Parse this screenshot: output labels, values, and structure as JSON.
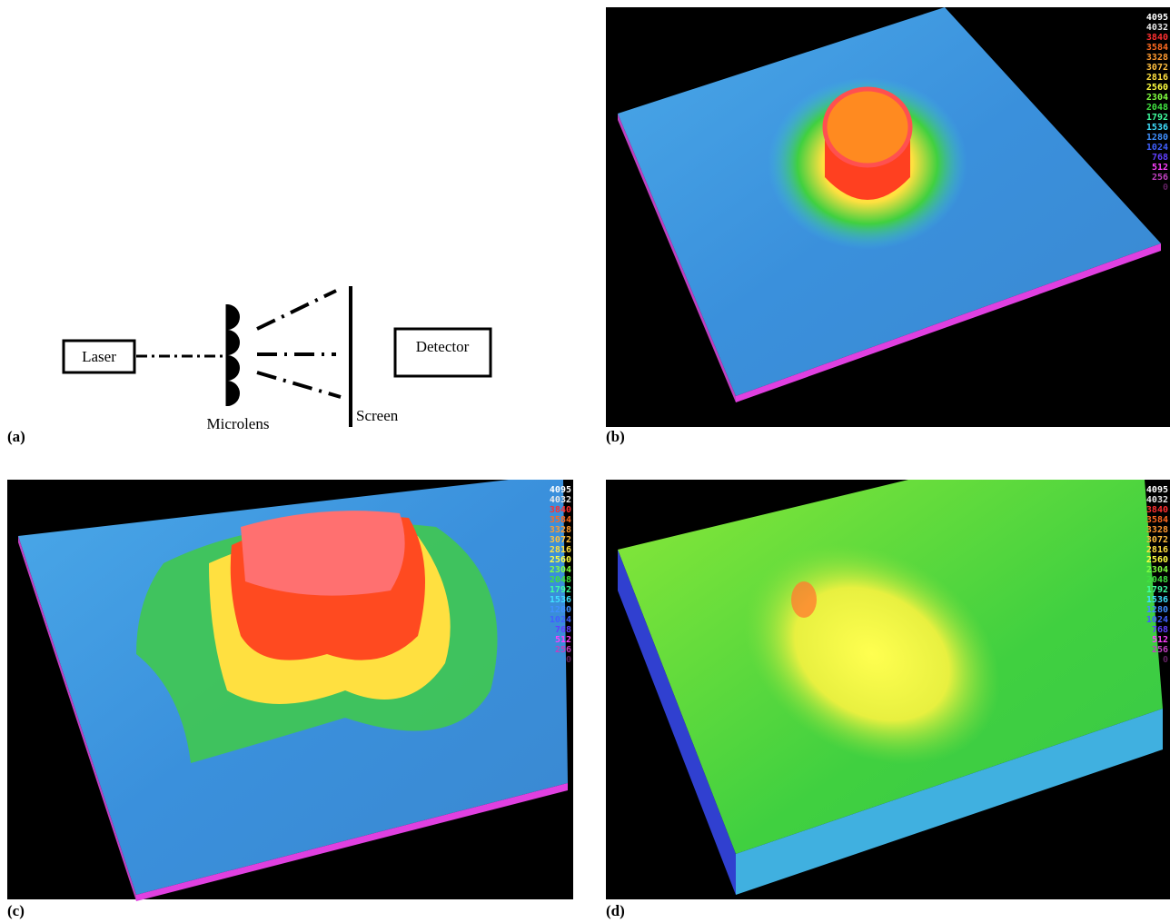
{
  "panels": [
    {
      "label": "(a)",
      "diagram": {
        "laser": "Laser",
        "microlens": "Microlens",
        "screen": "Screen",
        "detector": "Detector"
      }
    },
    {
      "label": "(b)"
    },
    {
      "label": "(c)"
    },
    {
      "label": "(d)"
    }
  ],
  "scale": {
    "labels": [
      "4095",
      "4032",
      "3840",
      "3584",
      "3328",
      "3072",
      "2816",
      "2560",
      "2304",
      "2048",
      "1792",
      "1536",
      "1280",
      "1024",
      "768",
      "512",
      "256",
      "0"
    ],
    "colors": [
      "#ffffff",
      "#e8e8e8",
      "#ff3030",
      "#ff6a20",
      "#ff9a30",
      "#ffc040",
      "#ffe040",
      "#ffff40",
      "#80ff40",
      "#40e040",
      "#40ffa0",
      "#40e0ff",
      "#4090ff",
      "#4060ff",
      "#6040ff",
      "#ff40ff",
      "#c040c0",
      "#602060"
    ]
  }
}
